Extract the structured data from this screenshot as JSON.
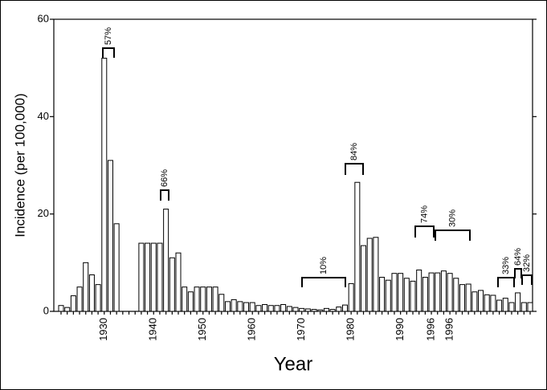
{
  "chart_data": {
    "type": "bar",
    "x_label": "Year",
    "y_label": "Incidence (per 100,000)",
    "categories": [
      null,
      null,
      null,
      null,
      null,
      null,
      null,
      "1930",
      null,
      null,
      null,
      null,
      null,
      null,
      null,
      "1940",
      null,
      null,
      null,
      null,
      null,
      null,
      null,
      "1950",
      null,
      null,
      null,
      null,
      null,
      null,
      null,
      "1960",
      null,
      null,
      null,
      null,
      null,
      null,
      null,
      "1970",
      null,
      null,
      null,
      null,
      null,
      null,
      null,
      "1980",
      null,
      null,
      null,
      null,
      null,
      null,
      null,
      "1990",
      null,
      null,
      null,
      null,
      "1996",
      null,
      null,
      "1996",
      null,
      null,
      null,
      null,
      null,
      null,
      null,
      null,
      null,
      null,
      null,
      null,
      null
    ],
    "values": [
      1.2,
      0.8,
      3.2,
      5,
      10,
      7.5,
      5.5,
      52,
      31,
      18,
      null,
      null,
      null,
      14,
      14,
      14,
      14,
      21,
      11,
      12,
      5,
      4,
      5,
      5,
      5,
      5,
      3.5,
      2,
      2.4,
      2,
      1.8,
      1.8,
      1.2,
      1.4,
      1.2,
      1.2,
      1.4,
      1.0,
      0.8,
      0.6,
      0.5,
      0.4,
      0.3,
      0.6,
      0.4,
      0.9,
      1.3,
      5.7,
      26.5,
      13.5,
      15,
      15.2,
      7,
      6.4,
      7.8,
      7.8,
      6.8,
      6.2,
      8.5,
      7,
      7.9,
      7.9,
      8.3,
      7.8,
      6.8,
      5.5,
      5.6,
      4,
      4.3,
      3.4,
      3.3,
      2.3,
      2.7,
      1.8,
      3.8,
      1.8,
      1.8
    ],
    "color": "#ffffff",
    "ylim": [
      0,
      60
    ],
    "yticks": [
      0,
      20,
      40,
      60
    ],
    "annotations": [
      "57%",
      "66%",
      "10%",
      "84%",
      "74%",
      "30%",
      "33%",
      "64%",
      "32%"
    ]
  }
}
